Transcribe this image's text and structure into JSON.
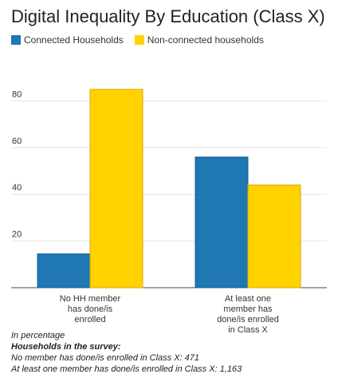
{
  "chart_data": {
    "type": "bar",
    "title": "Digital Inequality By Education (Class X)",
    "categories": [
      [
        "No HH member",
        "has done/is",
        "enrolled"
      ],
      [
        "At least one",
        "member has",
        "done/is enrolled",
        "in Class X"
      ]
    ],
    "series": [
      {
        "name": "Connected Households",
        "values": [
          14.5,
          56
        ],
        "color": "#1f77b4"
      },
      {
        "name": "Non-connected households",
        "values": [
          85,
          44
        ],
        "color": "#ffd200"
      }
    ],
    "ylim": [
      0,
      100
    ],
    "yticks": [
      20,
      40,
      60,
      80
    ],
    "grid": true,
    "legend": "top-left"
  },
  "footer": {
    "unit_note": "In percentage",
    "survey_heading": "Households in the survey:",
    "line1": "No member has done/is enrolled in Class X: 471",
    "line2": "At least one member has done/is enrolled in Class X: 1,163"
  }
}
